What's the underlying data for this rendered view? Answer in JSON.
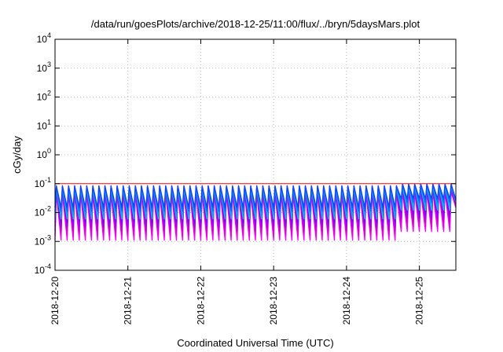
{
  "chart_data": {
    "type": "line",
    "title": "/data/run/goesPlots/archive/2018-12-25/11:00/flux/../bryn/5daysMars.plot",
    "xlabel": "Coordinated Universal Time (UTC)",
    "ylabel": "cGy/day",
    "yscale": "log",
    "ylim": [
      0.0001,
      10000
    ],
    "y_ticks": [
      {
        "value": 0.0001,
        "base": "10",
        "exp": "-4"
      },
      {
        "value": 0.001,
        "base": "10",
        "exp": "-3"
      },
      {
        "value": 0.01,
        "base": "10",
        "exp": "-2"
      },
      {
        "value": 0.1,
        "base": "10",
        "exp": "-1"
      },
      {
        "value": 1,
        "base": "10",
        "exp": "0"
      },
      {
        "value": 10,
        "base": "10",
        "exp": "1"
      },
      {
        "value": 100,
        "base": "10",
        "exp": "2"
      },
      {
        "value": 1000,
        "base": "10",
        "exp": "3"
      },
      {
        "value": 10000,
        "base": "10",
        "exp": "4"
      }
    ],
    "x_ticks": [
      "2018-12-20",
      "2018-12-21",
      "2018-12-22",
      "2018-12-23",
      "2018-12-24",
      "2018-12-25"
    ],
    "xlim": [
      "2018-12-20T00:00",
      "2018-12-25T12:00"
    ],
    "grid": true,
    "reference_line": {
      "value": 0.1,
      "color": "#ff0000"
    },
    "pattern": {
      "teeth_per_day": 12,
      "rise_fraction": 0.22,
      "note_type": "sawtooth"
    },
    "series": [
      {
        "color": "#ff00ff",
        "peak": 0.045,
        "trough": 0.0011
      },
      {
        "color": "#e600e6",
        "peak": 0.05,
        "trough": 0.0016
      },
      {
        "color": "#cc00cc",
        "peak": 0.055,
        "trough": 0.0023
      },
      {
        "color": "#9a00ff",
        "peak": 0.06,
        "trough": 0.0032
      },
      {
        "color": "#7f00ff",
        "peak": 0.065,
        "trough": 0.0045
      },
      {
        "color": "#00d0d0",
        "peak": 0.07,
        "trough": 0.006
      },
      {
        "color": "#00a8ff",
        "peak": 0.075,
        "trough": 0.008
      },
      {
        "color": "#0070ff",
        "peak": 0.08,
        "trough": 0.011
      },
      {
        "color": "#1040ff",
        "peak": 0.085,
        "trough": 0.015
      }
    ],
    "late_segment": {
      "start": "2018-12-24T18:00",
      "peak_scale": 1.15,
      "trough_scale": 2.0
    }
  }
}
